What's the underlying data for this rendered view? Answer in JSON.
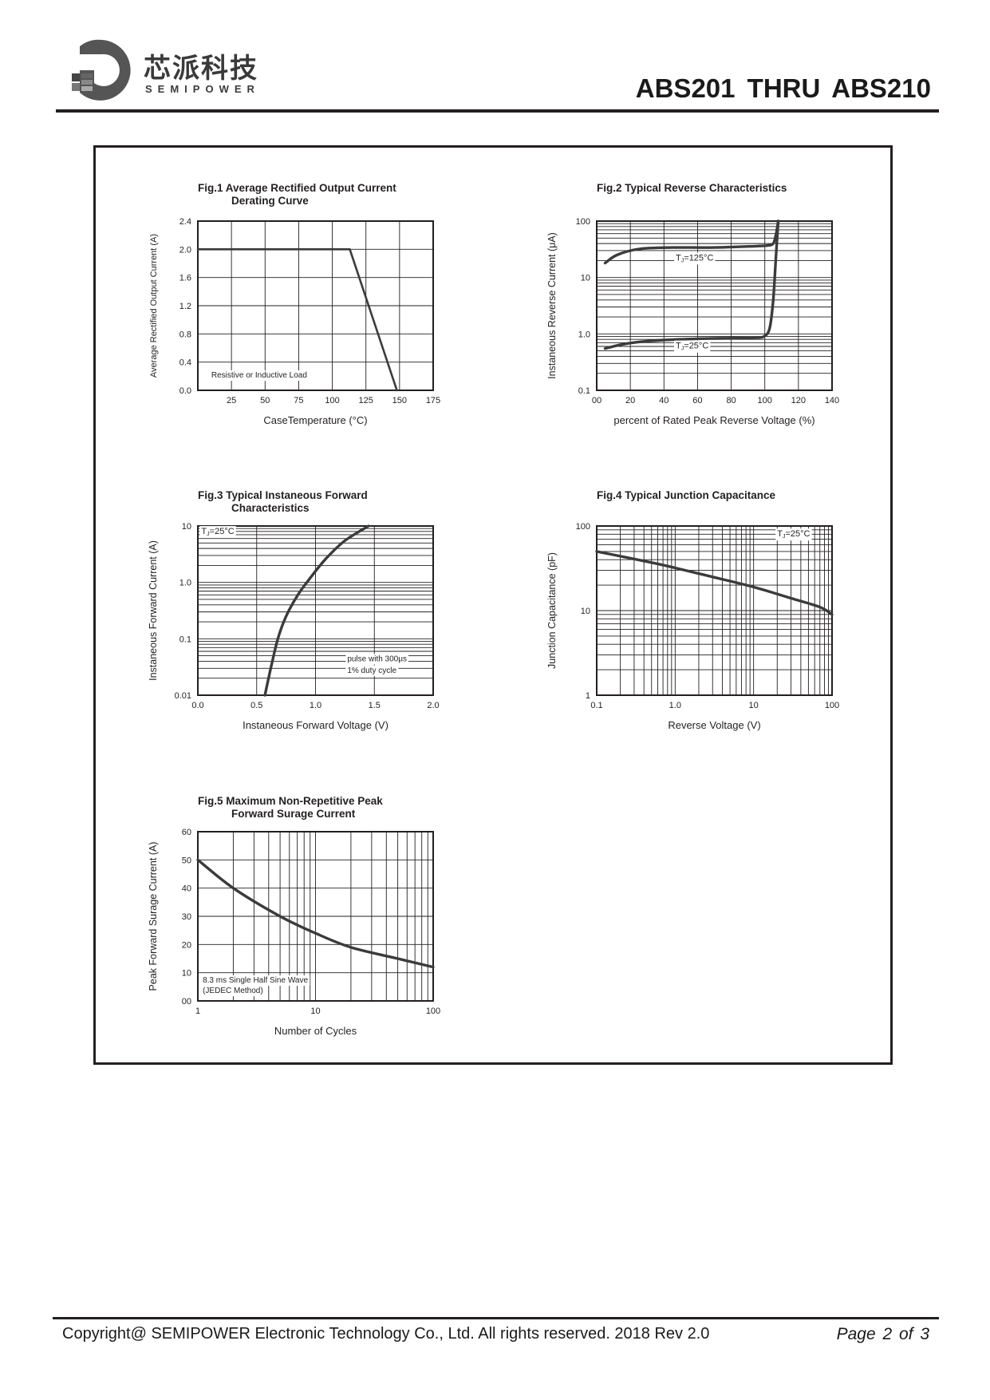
{
  "header": {
    "company_cn": "芯派科技",
    "company_en": "SEMIPOWER",
    "doc_title": "ABS201  THRU  ABS210"
  },
  "footer": {
    "copyright": "Copyright@ SEMIPOWER Electronic Technology Co., Ltd.  All rights reserved.  2018  Rev  2.0",
    "page": "Page  2  of  3"
  },
  "colors": {
    "ink": "#231f20",
    "grid": "#231f20",
    "curve": "#3b3b3b"
  },
  "chart_data": [
    {
      "id": "fig1",
      "type": "line",
      "title": "Fig.1  Average Rectified Output Current\n Derating Curve",
      "xlabel": "CaseTemperature (°C)",
      "ylabel": "Average Rectified Output Current (A)",
      "xscale": "linear",
      "yscale": "linear",
      "xlim": [
        0,
        175
      ],
      "ylim": [
        0,
        2.4
      ],
      "xticks": [
        25,
        50,
        75,
        100,
        125,
        150,
        175
      ],
      "xtick_labels": [
        "25",
        "50",
        "75",
        "100",
        "125",
        "150",
        "175"
      ],
      "yticks": [
        0,
        0.4,
        0.8,
        1.2,
        1.6,
        2.0,
        2.4
      ],
      "ytick_labels": [
        "0.0",
        "0.4",
        "0.8",
        "1.2",
        "1.6",
        "2.0",
        "2.4"
      ],
      "grid": true,
      "annotations": [
        {
          "text": "Resistive or Inductive Load",
          "x": 10,
          "y": 0.18
        }
      ],
      "series": [
        {
          "x": [
            0,
            113,
            148
          ],
          "y": [
            2.0,
            2.0,
            0
          ]
        }
      ]
    },
    {
      "id": "fig2",
      "type": "line",
      "title": "Fig.2  Typical Reverse Characteristics",
      "xlabel": "percent of Rated  Peak Reverse Voltage (%)",
      "ylabel": "Instaneous Reverse Current  (μA)",
      "xscale": "linear",
      "yscale": "log",
      "xlim": [
        0,
        140
      ],
      "ylim": [
        0.1,
        100
      ],
      "xticks": [
        0,
        20,
        40,
        60,
        80,
        100,
        120,
        140
      ],
      "xtick_labels": [
        "00",
        "20",
        "40",
        "60",
        "80",
        "100",
        "120",
        "140"
      ],
      "yticks": [
        0.1,
        1.0,
        10,
        100
      ],
      "ytick_labels": [
        "0.1",
        "1.0",
        "10",
        "100"
      ],
      "grid": true,
      "series": [
        {
          "name": "TJ=125°C",
          "x": [
            5,
            12,
            25,
            45,
            70,
            95,
            102,
            105,
            106.5,
            107.5,
            108
          ],
          "y": [
            18,
            25,
            32,
            34,
            34,
            36,
            37,
            40,
            55,
            80,
            100
          ]
        },
        {
          "name": "TJ=25°C",
          "x": [
            5,
            15,
            25,
            40,
            60,
            80,
            95,
            100,
            103,
            105,
            106.5,
            107.5,
            108
          ],
          "y": [
            0.55,
            0.65,
            0.72,
            0.78,
            0.82,
            0.84,
            0.86,
            0.92,
            1.3,
            4,
            20,
            60,
            100
          ]
        }
      ],
      "annotations": [
        {
          "text": "T",
          "sub": "J",
          "after": "=125°C",
          "x": 47,
          "y": 20
        },
        {
          "text": "T",
          "sub": "J",
          "after": "=25°C",
          "x": 47,
          "y": 0.55
        }
      ]
    },
    {
      "id": "fig3",
      "type": "line",
      "title": "Fig.3  Typical Instaneous Forward\n Characteristics",
      "xlabel": "Instaneous Forward Voltage (V)",
      "ylabel": "Instaneous Forward Current (A)",
      "xscale": "linear",
      "yscale": "log",
      "xlim": [
        0,
        2.0
      ],
      "ylim": [
        0.01,
        10
      ],
      "xticks": [
        0,
        0.5,
        1.0,
        1.5,
        2.0
      ],
      "xtick_labels": [
        "0.0",
        "0.5",
        "1.0",
        "1.5",
        "2.0"
      ],
      "yticks": [
        0.01,
        0.1,
        1.0,
        10
      ],
      "ytick_labels": [
        "0.01",
        "0.1",
        "1.0",
        "10"
      ],
      "grid": true,
      "series": [
        {
          "name": "TJ=25°C",
          "x": [
            0.57,
            0.62,
            0.68,
            0.75,
            0.85,
            0.98,
            1.1,
            1.25,
            1.45
          ],
          "y": [
            0.01,
            0.03,
            0.1,
            0.25,
            0.6,
            1.4,
            2.8,
            5.5,
            10
          ]
        }
      ],
      "annotations": [
        {
          "text": "T",
          "sub": "J",
          "after": "=25°C",
          "x": 0.03,
          "y": 7.2
        },
        {
          "text": "pulse with 300μs",
          "x": 1.27,
          "y": 0.04
        },
        {
          "text": "1% duty cycle",
          "x": 1.27,
          "y": 0.025
        }
      ]
    },
    {
      "id": "fig4",
      "type": "line",
      "title": "Fig.4  Typical Junction Capacitance",
      "xlabel": "Reverse  Voltage (V)",
      "ylabel": "Junction Capacitance (pF)",
      "xscale": "log",
      "yscale": "log",
      "xlim": [
        0.1,
        100
      ],
      "ylim": [
        1,
        100
      ],
      "xticks": [
        0.1,
        1.0,
        10,
        100
      ],
      "xtick_labels": [
        "0.1",
        "1.0",
        "10",
        "100"
      ],
      "yticks": [
        1,
        10,
        100
      ],
      "ytick_labels": [
        "1",
        "10",
        "100"
      ],
      "grid": true,
      "series": [
        {
          "name": "TJ=25°C",
          "x": [
            0.1,
            0.5,
            1,
            3,
            10,
            30,
            70,
            100
          ],
          "y": [
            50,
            37,
            32,
            25,
            19,
            14,
            11,
            9
          ]
        }
      ],
      "annotations": [
        {
          "text": "T",
          "sub": "J",
          "after": "=25°C",
          "x": 20,
          "y": 75
        }
      ]
    },
    {
      "id": "fig5",
      "type": "line",
      "title": "Fig.5  Maximum Non-Repetitive Peak\n Forward Surage Current",
      "xlabel": "Number of Cycles",
      "ylabel": "Peak Forward Surage Current (A)",
      "xscale": "log",
      "yscale": "linear",
      "xlim": [
        1,
        100
      ],
      "ylim": [
        0,
        60
      ],
      "xticks": [
        1,
        10,
        100
      ],
      "xtick_labels": [
        "1",
        "10",
        "100"
      ],
      "yticks": [
        0,
        10,
        20,
        30,
        40,
        50,
        60
      ],
      "ytick_labels": [
        "00",
        "10",
        "20",
        "30",
        "40",
        "50",
        "60"
      ],
      "grid": true,
      "series": [
        {
          "x": [
            1,
            2,
            5,
            10,
            20,
            50,
            100
          ],
          "y": [
            50,
            40,
            30,
            24,
            19,
            15,
            12
          ]
        }
      ],
      "annotations": [
        {
          "text": "8.3 ms Single Half Sine Wave",
          "x": 1.1,
          "y": 6.5
        },
        {
          "text": "(JEDEC Method)",
          "x": 1.1,
          "y": 2.8
        }
      ]
    }
  ]
}
